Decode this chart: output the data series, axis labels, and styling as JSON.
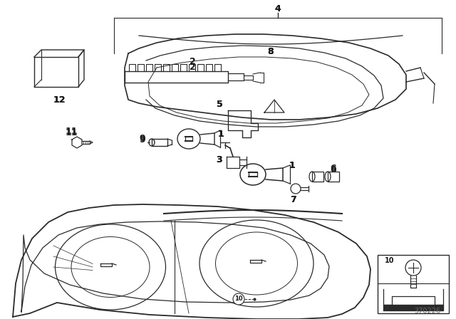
{
  "bg_color": "#ffffff",
  "line_color": "#2a2a2a",
  "text_color": "#1a1a1a",
  "diagram_number": "370226",
  "figsize": [
    6.4,
    4.48
  ],
  "dpi": 100
}
